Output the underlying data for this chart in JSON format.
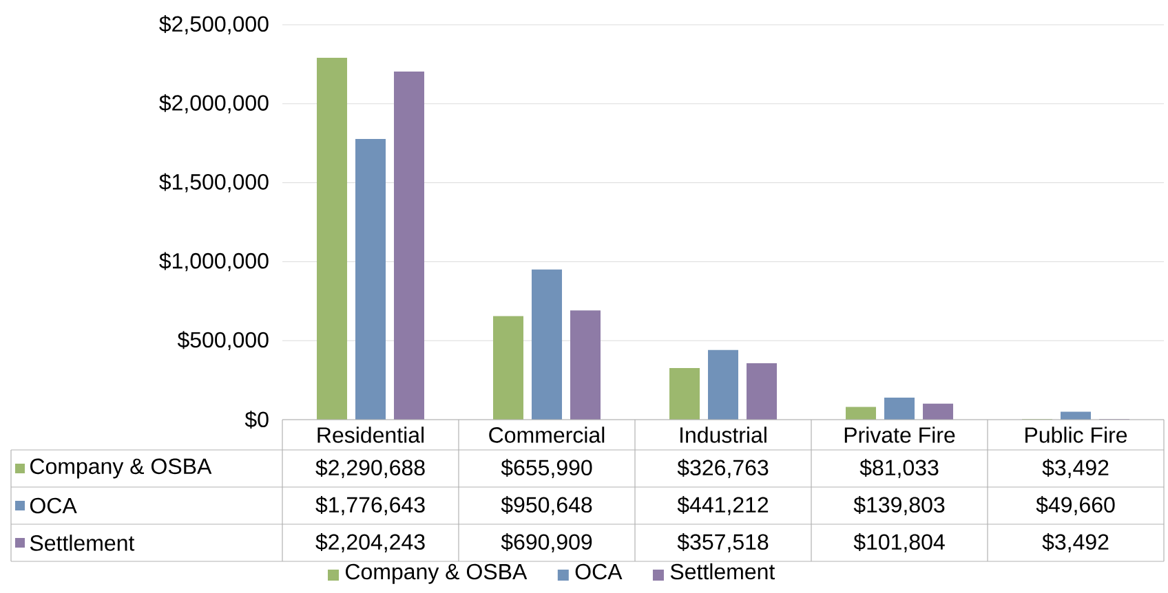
{
  "chart_data": {
    "type": "bar",
    "categories": [
      "Residential",
      "Commercial",
      "Industrial",
      "Private Fire",
      "Public Fire"
    ],
    "series": [
      {
        "name": "Company & OSBA",
        "color": "#9cb86e",
        "values": [
          2290688,
          655990,
          326763,
          81033,
          3492
        ],
        "value_labels": [
          "$2,290,688",
          "$655,990",
          "$326,763",
          "$81,033",
          "$3,492"
        ]
      },
      {
        "name": "OCA",
        "color": "#7192b9",
        "values": [
          1776643,
          950648,
          441212,
          139803,
          49660
        ],
        "value_labels": [
          "$1,776,643",
          "$950,648",
          "$441,212",
          "$139,803",
          "$49,660"
        ]
      },
      {
        "name": "Settlement",
        "color": "#8e7ba6",
        "values": [
          2204243,
          690909,
          357518,
          101804,
          3492
        ],
        "value_labels": [
          "$2,204,243",
          "$690,909",
          "$357,518",
          "$101,804",
          "$3,492"
        ]
      }
    ],
    "ylim": [
      0,
      2500000
    ],
    "yticks": [
      {
        "value": 0,
        "label": "$0"
      },
      {
        "value": 500000,
        "label": "$500,000"
      },
      {
        "value": 1000000,
        "label": "$1,000,000"
      },
      {
        "value": 1500000,
        "label": "$1,500,000"
      },
      {
        "value": 2000000,
        "label": "$2,000,000"
      },
      {
        "value": 2500000,
        "label": "$2,500,000"
      }
    ],
    "grid": "y",
    "legend": "bottom"
  }
}
